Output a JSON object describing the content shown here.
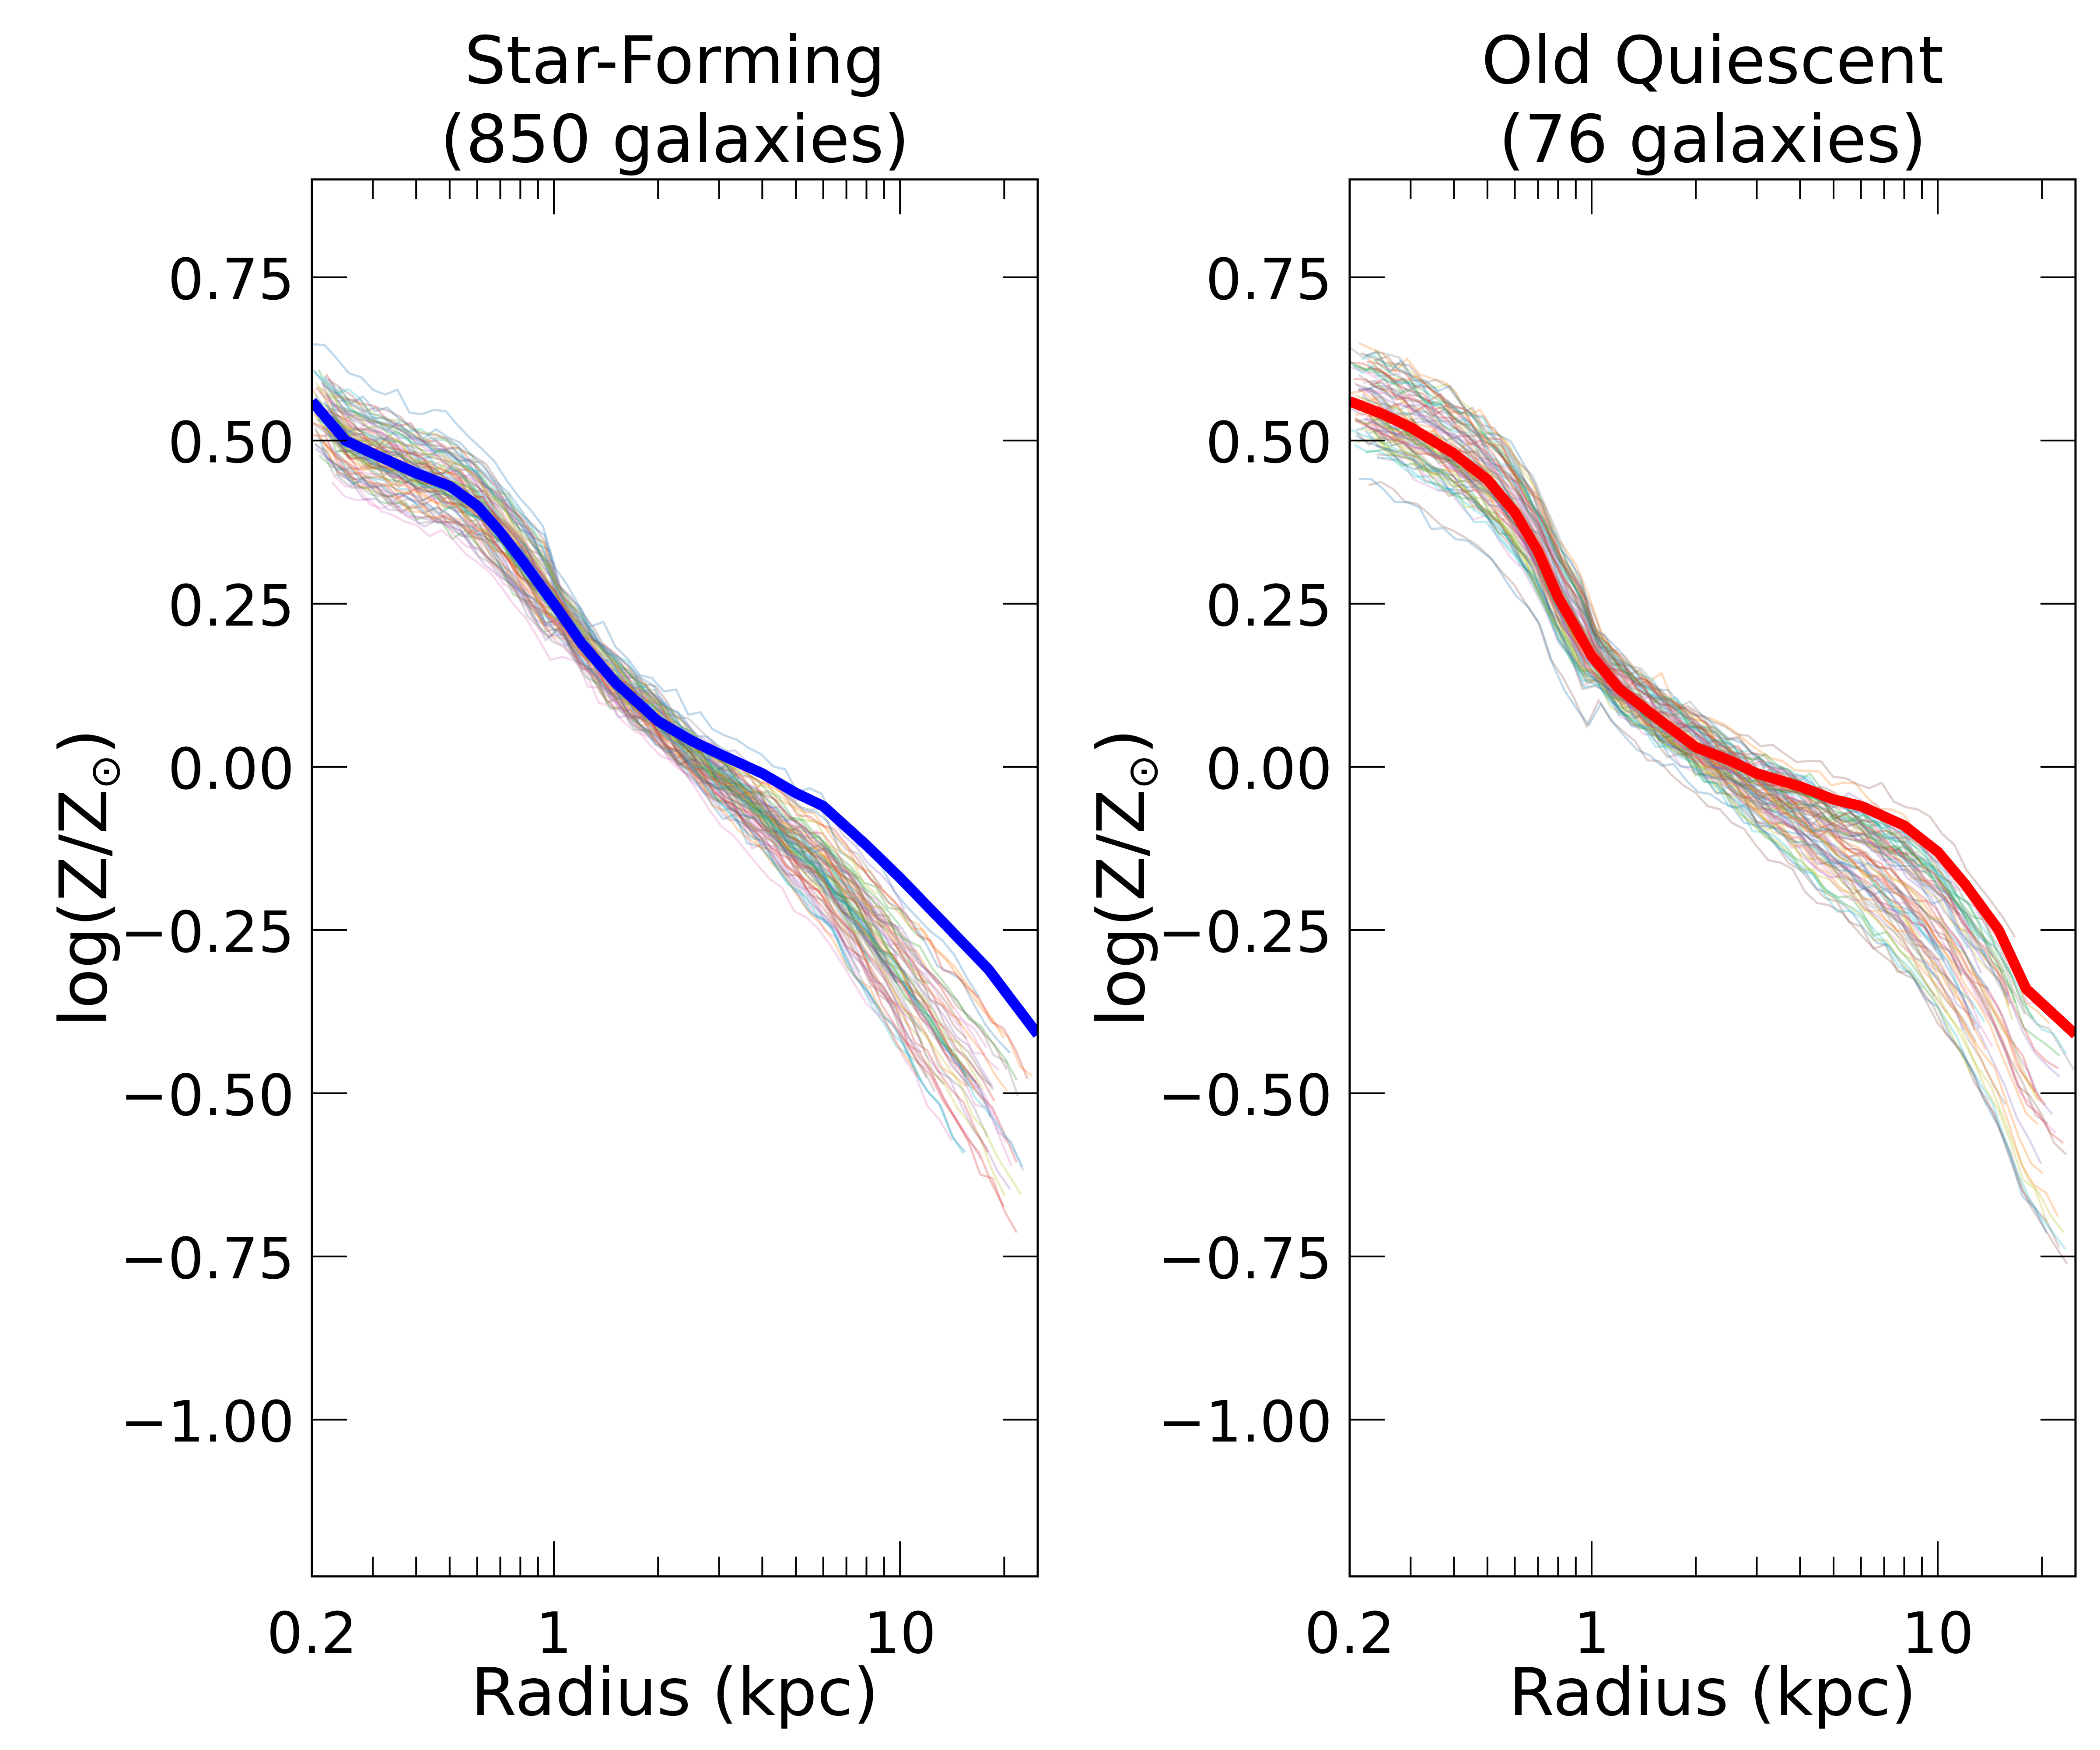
{
  "colors": {
    "sf_median": "#0000ff",
    "oq_median": "#ff0000",
    "frame": "#000000",
    "individual_palette": [
      "#1f77b4",
      "#ff7f0e",
      "#2ca02c",
      "#d62728",
      "#9467bd",
      "#8c564b",
      "#e377c2",
      "#7f7f7f",
      "#bcbd22",
      "#17becf"
    ]
  },
  "chart_data": [
    {
      "type": "line",
      "title_line1": "Star-Forming",
      "title_line2": "(850 galaxies)",
      "xlabel": "Radius (kpc)",
      "ylabel": "log(Z/Z",
      "ylabel_subscript": "⊙",
      "ylabel_suffix": ")",
      "xscale": "log",
      "xlim": [
        0.2,
        25
      ],
      "ylim": [
        -1.24,
        0.9
      ],
      "xtick_labels": [
        "0.2",
        "1",
        "10"
      ],
      "xticks": [
        0.2,
        1,
        10
      ],
      "yticks": [
        0.75,
        0.5,
        0.25,
        0.0,
        -0.25,
        -0.5,
        -0.75,
        -1.0
      ],
      "ytick_labels": [
        "0.75",
        "0.50",
        "0.25",
        "0.00",
        "−0.25",
        "−0.50",
        "−0.75",
        "−1.00"
      ],
      "grid": false,
      "individual_profiles_shown": "many thin semi-transparent colored lines, one per galaxy",
      "median": {
        "name": "",
        "x": [
          0.2,
          0.25,
          0.3,
          0.4,
          0.5,
          0.6,
          0.7,
          0.8,
          1.0,
          1.2,
          1.5,
          2.0,
          2.5,
          3.0,
          4.0,
          5.0,
          6.0,
          8.0,
          10.0,
          14.0,
          18.0,
          25.0
        ],
        "y": [
          0.56,
          0.5,
          0.48,
          0.45,
          0.43,
          0.4,
          0.36,
          0.32,
          0.25,
          0.19,
          0.13,
          0.07,
          0.04,
          0.02,
          -0.01,
          -0.04,
          -0.06,
          -0.12,
          -0.17,
          -0.25,
          -0.31,
          -0.41
        ]
      }
    },
    {
      "type": "line",
      "title_line1": "Old Quiescent",
      "title_line2": "(76 galaxies)",
      "xlabel": "Radius (kpc)",
      "ylabel": "log(Z/Z",
      "ylabel_subscript": "⊙",
      "ylabel_suffix": ")",
      "xscale": "log",
      "xlim": [
        0.2,
        25
      ],
      "ylim": [
        -1.24,
        0.9
      ],
      "xtick_labels": [
        "0.2",
        "1",
        "10"
      ],
      "xticks": [
        0.2,
        1,
        10
      ],
      "yticks": [
        0.75,
        0.5,
        0.25,
        0.0,
        -0.25,
        -0.5,
        -0.75,
        -1.0
      ],
      "ytick_labels": [
        "0.75",
        "0.50",
        "0.25",
        "0.00",
        "−0.25",
        "−0.50",
        "−0.75",
        "−1.00"
      ],
      "grid": false,
      "individual_profiles_shown": "many thin semi-transparent colored lines, one per galaxy",
      "median": {
        "name": "",
        "x": [
          0.2,
          0.25,
          0.3,
          0.4,
          0.5,
          0.6,
          0.7,
          0.8,
          1.0,
          1.2,
          1.5,
          2.0,
          2.5,
          3.0,
          4.0,
          5.0,
          6.0,
          8.0,
          10.0,
          12.0,
          15.0,
          18.0,
          25.0
        ],
        "y": [
          0.56,
          0.54,
          0.52,
          0.48,
          0.44,
          0.39,
          0.33,
          0.26,
          0.17,
          0.12,
          0.08,
          0.03,
          0.01,
          -0.01,
          -0.03,
          -0.05,
          -0.06,
          -0.09,
          -0.13,
          -0.18,
          -0.25,
          -0.34,
          -0.41
        ]
      }
    }
  ]
}
